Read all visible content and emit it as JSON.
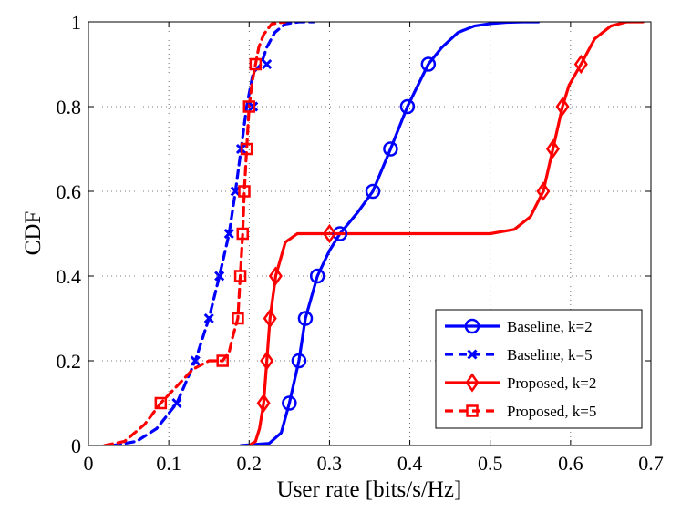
{
  "chart_data": {
    "type": "line",
    "xlabel": "User rate [bits/s/Hz]",
    "ylabel": "CDF",
    "xlim": [
      0,
      0.7
    ],
    "ylim": [
      0,
      1
    ],
    "xticks": [
      0,
      0.1,
      0.2,
      0.3,
      0.4,
      0.5,
      0.6,
      0.7
    ],
    "xtick_labels": [
      "0",
      "0.1",
      "0.2",
      "0.3",
      "0.4",
      "0.5",
      "0.6",
      "0.7"
    ],
    "yticks": [
      0,
      0.2,
      0.4,
      0.6,
      0.8,
      1
    ],
    "ytick_labels": [
      "0",
      "0.2",
      "0.4",
      "0.6",
      "0.8",
      "1"
    ],
    "grid": true,
    "legend_position": "bottom-right",
    "series": [
      {
        "name": "Baseline, k=2",
        "color": "#0000ff",
        "line_style": "solid",
        "marker": "circle",
        "x": [
          0.19,
          0.225,
          0.24,
          0.25,
          0.262,
          0.27,
          0.285,
          0.3,
          0.313,
          0.335,
          0.354,
          0.376,
          0.397,
          0.423,
          0.44,
          0.46,
          0.48,
          0.5,
          0.52,
          0.54,
          0.56
        ],
        "y": [
          0.0,
          0.005,
          0.03,
          0.1,
          0.2,
          0.3,
          0.4,
          0.46,
          0.5,
          0.55,
          0.6,
          0.7,
          0.8,
          0.9,
          0.94,
          0.975,
          0.99,
          0.996,
          0.999,
          1.0,
          1.0
        ],
        "markers_x": [
          0.25,
          0.262,
          0.27,
          0.285,
          0.313,
          0.354,
          0.376,
          0.397,
          0.423
        ],
        "markers_y": [
          0.1,
          0.2,
          0.3,
          0.4,
          0.5,
          0.6,
          0.7,
          0.8,
          0.9
        ]
      },
      {
        "name": "Baseline, k=5",
        "color": "#0000ff",
        "line_style": "dashed",
        "marker": "x",
        "x": [
          0.03,
          0.06,
          0.085,
          0.11,
          0.133,
          0.15,
          0.163,
          0.175,
          0.183,
          0.19,
          0.197,
          0.205,
          0.215,
          0.222,
          0.232,
          0.245,
          0.262,
          0.28
        ],
        "y": [
          0.0,
          0.01,
          0.04,
          0.1,
          0.2,
          0.3,
          0.4,
          0.5,
          0.6,
          0.7,
          0.8,
          0.88,
          0.9,
          0.94,
          0.975,
          0.995,
          1.0,
          1.0
        ],
        "markers_x": [
          0.11,
          0.133,
          0.15,
          0.163,
          0.175,
          0.183,
          0.19,
          0.205,
          0.222
        ],
        "markers_y": [
          0.1,
          0.2,
          0.3,
          0.4,
          0.5,
          0.6,
          0.7,
          0.8,
          0.9
        ]
      },
      {
        "name": "Proposed, k=2",
        "color": "#ff0000",
        "line_style": "solid",
        "marker": "diamond",
        "x": [
          0.2,
          0.208,
          0.213,
          0.218,
          0.222,
          0.226,
          0.233,
          0.245,
          0.26,
          0.3,
          0.4,
          0.5,
          0.53,
          0.55,
          0.558,
          0.566,
          0.578,
          0.59,
          0.598,
          0.613,
          0.63,
          0.65,
          0.67,
          0.69
        ],
        "y": [
          0.0,
          0.01,
          0.04,
          0.1,
          0.2,
          0.3,
          0.4,
          0.48,
          0.5,
          0.5,
          0.5,
          0.5,
          0.51,
          0.54,
          0.57,
          0.6,
          0.7,
          0.8,
          0.85,
          0.9,
          0.96,
          0.99,
          1.0,
          1.0
        ],
        "markers_x": [
          0.218,
          0.222,
          0.226,
          0.233,
          0.3,
          0.566,
          0.578,
          0.59,
          0.613
        ],
        "markers_y": [
          0.1,
          0.2,
          0.3,
          0.4,
          0.5,
          0.6,
          0.7,
          0.8,
          0.9
        ]
      },
      {
        "name": "Proposed, k=5",
        "color": "#ff0000",
        "line_style": "dashed",
        "marker": "square",
        "x": [
          0.02,
          0.045,
          0.07,
          0.09,
          0.11,
          0.13,
          0.15,
          0.167,
          0.175,
          0.18,
          0.186,
          0.189,
          0.192,
          0.194,
          0.197,
          0.2,
          0.204,
          0.208,
          0.212,
          0.218,
          0.228,
          0.245
        ],
        "y": [
          0.0,
          0.01,
          0.05,
          0.1,
          0.14,
          0.18,
          0.2,
          0.2,
          0.22,
          0.26,
          0.3,
          0.4,
          0.5,
          0.6,
          0.7,
          0.8,
          0.86,
          0.9,
          0.94,
          0.97,
          0.995,
          1.0
        ],
        "markers_x": [
          0.09,
          0.167,
          0.186,
          0.189,
          0.192,
          0.194,
          0.197,
          0.2,
          0.208
        ],
        "markers_y": [
          0.1,
          0.2,
          0.3,
          0.4,
          0.5,
          0.6,
          0.7,
          0.8,
          0.9
        ]
      }
    ]
  }
}
